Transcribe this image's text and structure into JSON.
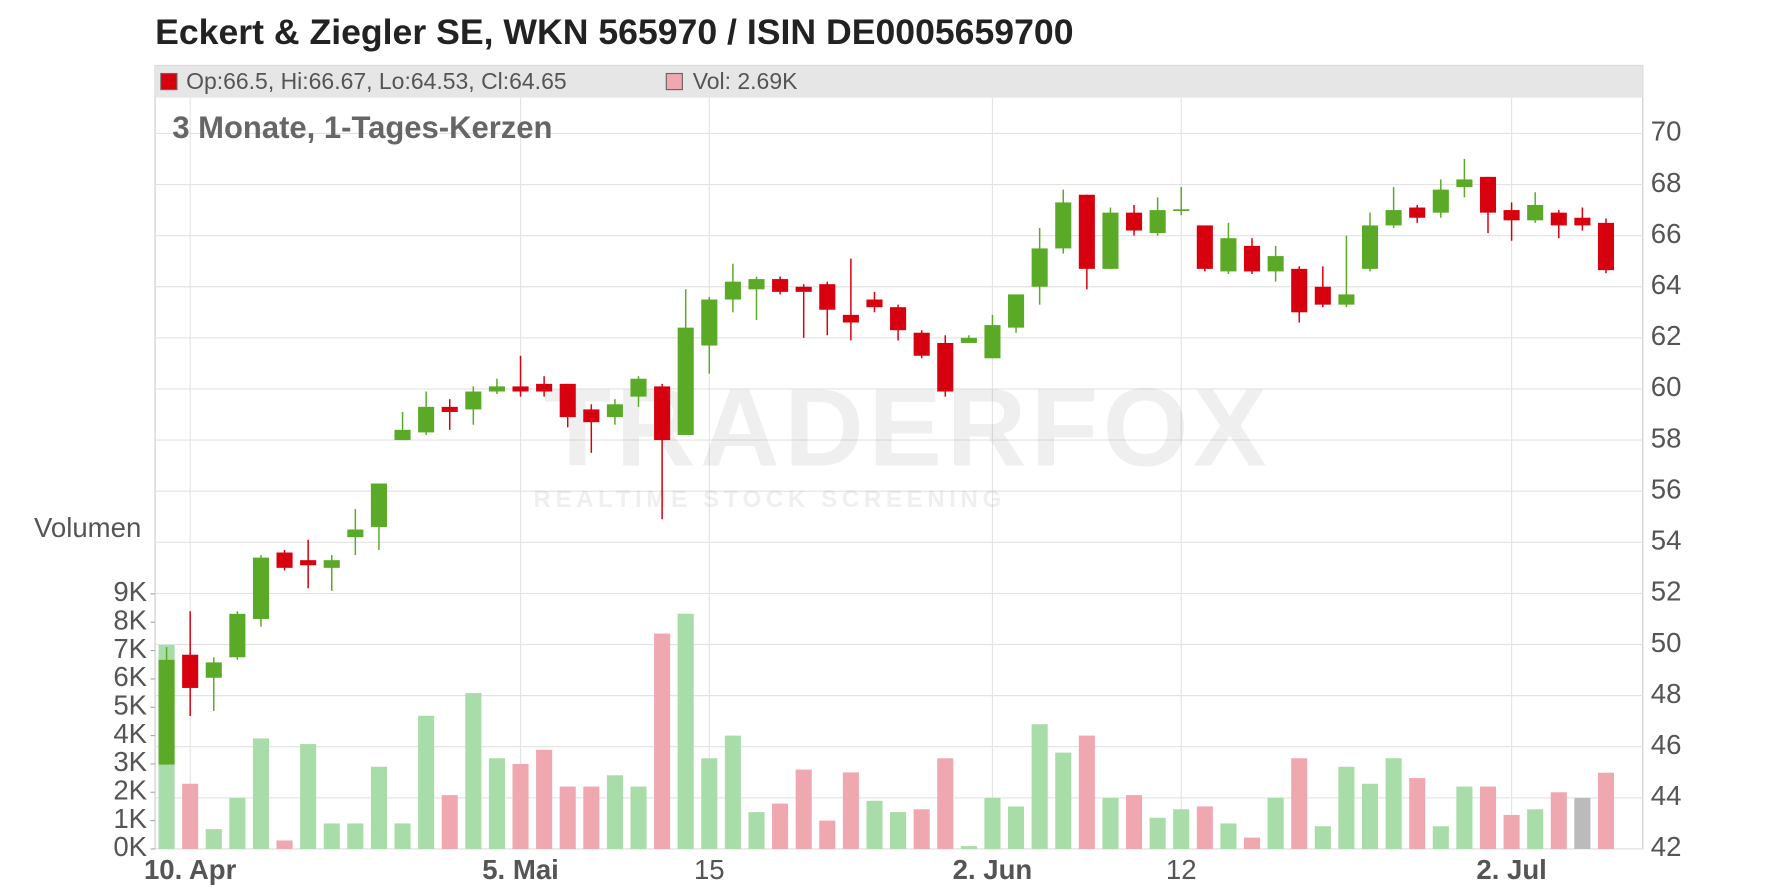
{
  "chart_data": {
    "type": "candlestick",
    "title": "Eckert & Ziegler SE, WKN 565970 / ISIN DE0005659700",
    "subtitle": "3 Monate, 1-Tages-Kerzen",
    "legend_ohlc": "Op:66.5, Hi:66.67, Lo:64.53, Cl:64.65",
    "legend_volume": "Vol: 2.69K",
    "volume_axis_label": "Volumen",
    "watermark": "TRADERFOX",
    "watermark_sub": "REALTIME STOCK SCREENING",
    "categories": [
      null,
      "10. Apr",
      null,
      null,
      null,
      null,
      null,
      null,
      null,
      null,
      null,
      null,
      null,
      null,
      null,
      "5. Mai",
      null,
      null,
      null,
      null,
      null,
      null,
      null,
      "15",
      null,
      null,
      null,
      null,
      null,
      null,
      null,
      null,
      null,
      null,
      null,
      "2. Jun",
      null,
      null,
      null,
      null,
      null,
      null,
      null,
      "12",
      null,
      null,
      null,
      null,
      null,
      null,
      null,
      null,
      null,
      null,
      null,
      null,
      null,
      "2. Jul",
      null,
      null,
      null,
      null
    ],
    "open": [
      45.3,
      49.6,
      48.7,
      49.5,
      51.0,
      53.6,
      53.3,
      53.0,
      54.2,
      54.6,
      58.0,
      58.3,
      59.3,
      59.2,
      59.9,
      60.1,
      60.2,
      60.2,
      59.2,
      58.9,
      59.7,
      60.1,
      58.2,
      61.7,
      63.5,
      63.9,
      64.3,
      64.0,
      64.1,
      62.9,
      63.5,
      63.2,
      62.2,
      61.8,
      61.8,
      61.2,
      62.4,
      64.0,
      65.5,
      67.6,
      64.7,
      66.9,
      66.1,
      67.0,
      66.4,
      64.6,
      65.6,
      64.6,
      64.7,
      64.0,
      63.3,
      64.7,
      66.4,
      67.1,
      66.9,
      67.9,
      68.3,
      67.0,
      66.6,
      66.9,
      66.7,
      66.5
    ],
    "high": [
      49.9,
      51.3,
      49.5,
      51.3,
      53.5,
      53.7,
      54.1,
      53.5,
      55.3,
      56.3,
      59.1,
      59.9,
      59.6,
      60.1,
      60.4,
      61.3,
      60.5,
      60.2,
      59.4,
      59.6,
      60.5,
      60.2,
      63.9,
      63.6,
      64.9,
      64.4,
      64.4,
      64.1,
      64.2,
      65.1,
      63.8,
      63.3,
      62.3,
      62.1,
      62.1,
      62.9,
      63.7,
      66.3,
      67.8,
      67.6,
      67.1,
      67.2,
      67.5,
      67.9,
      66.4,
      66.5,
      65.9,
      65.6,
      64.8,
      64.8,
      66.0,
      66.9,
      67.9,
      67.2,
      68.2,
      69.0,
      68.3,
      67.3,
      67.7,
      67.0,
      67.1,
      66.67
    ],
    "low": [
      45.3,
      47.2,
      47.4,
      49.4,
      50.7,
      52.9,
      52.2,
      52.1,
      53.5,
      53.7,
      58.0,
      58.2,
      58.4,
      58.6,
      59.8,
      59.7,
      59.7,
      58.5,
      57.5,
      58.6,
      59.3,
      54.9,
      58.2,
      60.6,
      63.0,
      62.7,
      63.7,
      62.0,
      62.1,
      61.9,
      63.0,
      61.9,
      61.2,
      59.7,
      61.8,
      61.2,
      62.2,
      63.3,
      65.3,
      63.9,
      64.7,
      66.0,
      66.0,
      66.8,
      64.6,
      64.5,
      64.5,
      64.2,
      62.6,
      63.2,
      63.2,
      64.6,
      66.3,
      66.5,
      66.7,
      67.5,
      66.1,
      65.8,
      66.5,
      65.9,
      66.2,
      64.53
    ],
    "close": [
      49.4,
      48.3,
      49.3,
      51.2,
      53.4,
      53.0,
      53.1,
      53.3,
      54.5,
      56.3,
      58.4,
      59.3,
      59.1,
      59.9,
      60.1,
      59.9,
      59.9,
      58.9,
      58.7,
      59.4,
      60.4,
      58.0,
      62.4,
      63.5,
      64.2,
      64.3,
      63.8,
      63.8,
      63.1,
      62.6,
      63.2,
      62.3,
      61.3,
      59.9,
      62.0,
      62.5,
      63.7,
      65.5,
      67.3,
      64.7,
      66.9,
      66.2,
      67.0,
      67.03,
      64.7,
      65.9,
      64.6,
      65.2,
      63.0,
      63.3,
      63.7,
      66.4,
      67.0,
      66.7,
      67.8,
      68.2,
      66.9,
      66.6,
      67.2,
      66.4,
      66.4,
      64.65
    ],
    "volume": [
      7200,
      2300,
      700,
      1800,
      3900,
      300,
      3700,
      900,
      900,
      2900,
      900,
      4700,
      1900,
      5500,
      3200,
      3000,
      3500,
      2200,
      2200,
      2600,
      2200,
      7600,
      8300,
      3200,
      4000,
      1300,
      1600,
      2800,
      1000,
      2700,
      1700,
      1300,
      1400,
      3200,
      100,
      1800,
      1500,
      4400,
      3400,
      4000,
      1800,
      1900,
      1100,
      1400,
      1500,
      900,
      400,
      1800,
      3200,
      800,
      2900,
      2300,
      3200,
      2500,
      800,
      2200,
      2200,
      1200,
      1400,
      2000,
      1800,
      2690
    ],
    "volume_colors": [
      "#a8dca8",
      "#f0a8b0",
      "#a8dca8",
      "#a8dca8",
      "#a8dca8",
      "#f0a8b0",
      "#a8dca8",
      "#a8dca8",
      "#a8dca8",
      "#a8dca8",
      "#a8dca8",
      "#a8dca8",
      "#f0a8b0",
      "#a8dca8",
      "#a8dca8",
      "#f0a8b0",
      "#f0a8b0",
      "#f0a8b0",
      "#f0a8b0",
      "#a8dca8",
      "#a8dca8",
      "#f0a8b0",
      "#a8dca8",
      "#a8dca8",
      "#a8dca8",
      "#a8dca8",
      "#f0a8b0",
      "#f0a8b0",
      "#f0a8b0",
      "#f0a8b0",
      "#a8dca8",
      "#a8dca8",
      "#f0a8b0",
      "#f0a8b0",
      "#a8dca8",
      "#a8dca8",
      "#a8dca8",
      "#a8dca8",
      "#a8dca8",
      "#f0a8b0",
      "#a8dca8",
      "#f0a8b0",
      "#a8dca8",
      "#a8dca8",
      "#f0a8b0",
      "#a8dca8",
      "#f0a8b0",
      "#a8dca8",
      "#f0a8b0",
      "#a8dca8",
      "#a8dca8",
      "#a8dca8",
      "#a8dca8",
      "#f0a8b0",
      "#a8dca8",
      "#a8dca8",
      "#f0a8b0",
      "#f0a8b0",
      "#a8dca8",
      "#f0a8b0",
      "#bbbbbb",
      "#f0a8b0"
    ],
    "up_color": "#5aaa28",
    "down_color": "#d7000f",
    "ylim": [
      42,
      71.4
    ],
    "yticks": [
      42,
      44,
      46,
      48,
      50,
      52,
      54,
      56,
      58,
      60,
      62,
      64,
      66,
      68,
      70
    ],
    "y2lim": [
      0,
      9000
    ],
    "y2ticks": [
      {
        "value": 0,
        "label": "0K"
      },
      {
        "value": 1000,
        "label": "1K"
      },
      {
        "value": 2000,
        "label": "2K"
      },
      {
        "value": 3000,
        "label": "3K"
      },
      {
        "value": 4000,
        "label": "4K"
      },
      {
        "value": 5000,
        "label": "5K"
      },
      {
        "value": 6000,
        "label": "6K"
      },
      {
        "value": 7000,
        "label": "7K"
      },
      {
        "value": 8000,
        "label": "8K"
      },
      {
        "value": 9000,
        "label": "9K"
      }
    ],
    "grid": true
  }
}
